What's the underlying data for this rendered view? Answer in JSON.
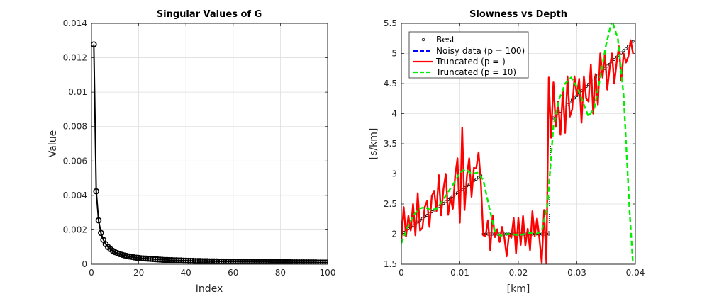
{
  "chart_data": [
    {
      "type": "line",
      "title": "Singular Values of G",
      "xlabel": "Index",
      "ylabel": "Value",
      "xlim": [
        0,
        100
      ],
      "ylim": [
        0,
        0.014
      ],
      "xticks": [
        0,
        20,
        40,
        60,
        80,
        100
      ],
      "yticks": [
        0,
        0.002,
        0.004,
        0.006,
        0.008,
        0.01,
        0.012,
        0.014
      ],
      "xtick_labels": [
        "0",
        "20",
        "40",
        "60",
        "80",
        "100"
      ],
      "ytick_labels": [
        "0",
        "0.002",
        "0.004",
        "0.006",
        "0.008",
        "0.01",
        "0.012",
        "0.014"
      ],
      "grid": true,
      "series": [
        {
          "color": "#000000",
          "marker": "circle",
          "x": [
            1,
            2,
            3,
            4,
            5,
            6,
            7,
            8,
            9,
            10,
            11,
            12,
            13,
            14,
            15,
            16,
            17,
            18,
            19,
            20,
            21,
            22,
            23,
            24,
            25,
            26,
            27,
            28,
            29,
            30,
            31,
            32,
            33,
            34,
            35,
            36,
            37,
            38,
            39,
            40,
            41,
            42,
            43,
            44,
            45,
            46,
            47,
            48,
            49,
            50,
            51,
            52,
            53,
            54,
            55,
            56,
            57,
            58,
            59,
            60,
            61,
            62,
            63,
            64,
            65,
            66,
            67,
            68,
            69,
            70,
            71,
            72,
            73,
            74,
            75,
            76,
            77,
            78,
            79,
            80,
            81,
            82,
            83,
            84,
            85,
            86,
            87,
            88,
            89,
            90,
            91,
            92,
            93,
            94,
            95,
            96,
            97,
            98,
            99,
            100
          ],
          "y": [
            0.01278,
            0.00424,
            0.00255,
            0.00182,
            0.00142,
            0.00117,
            0.001,
            0.00088,
            0.00078,
            0.0007,
            0.00064,
            0.00059,
            0.00055,
            0.00051,
            0.00048,
            0.00045,
            0.00043,
            0.0004,
            0.00038,
            0.00037,
            0.00035,
            0.00034,
            0.00033,
            0.00032,
            0.00031,
            0.0003,
            0.00029,
            0.00028,
            0.00027,
            0.00026,
            0.00025,
            0.00025,
            0.00024,
            0.00024,
            0.00023,
            0.00023,
            0.00022,
            0.00022,
            0.00021,
            0.00021,
            0.0002,
            0.0002,
            0.0002,
            0.00019,
            0.00019,
            0.00019,
            0.00018,
            0.00018,
            0.00018,
            0.00017,
            0.00017,
            0.00017,
            0.00017,
            0.00016,
            0.00016,
            0.00016,
            0.00016,
            0.00015,
            0.00015,
            0.00015,
            0.00015,
            0.00015,
            0.00014,
            0.00014,
            0.00014,
            0.00014,
            0.00014,
            0.00014,
            0.00013,
            0.00013,
            0.00013,
            0.00013,
            0.00013,
            0.00013,
            0.00013,
            0.00012,
            0.00012,
            0.00012,
            0.00012,
            0.00012,
            0.00012,
            0.00012,
            0.00012,
            0.00012,
            0.00011,
            0.00011,
            0.00011,
            0.00011,
            0.00011,
            0.00011,
            0.00011,
            0.00011,
            0.00011,
            0.00011,
            0.00011,
            0.0001,
            0.0001,
            0.0001,
            0.0001,
            0.0001
          ]
        }
      ]
    },
    {
      "type": "line",
      "title": "Slowness vs Depth",
      "xlabel": "[km]",
      "ylabel": "[s/km]",
      "xlim": [
        0,
        0.04
      ],
      "ylim": [
        1.5,
        5.5
      ],
      "xticks": [
        0,
        0.01,
        0.02,
        0.03,
        0.04
      ],
      "yticks": [
        1.5,
        2,
        2.5,
        3,
        3.5,
        4,
        4.5,
        5,
        5.5
      ],
      "xtick_labels": [
        "0",
        "0.01",
        "0.02",
        "0.03",
        "0.04"
      ],
      "ytick_labels": [
        "1.5",
        "2",
        "2.5",
        "3",
        "3.5",
        "4",
        "4.5",
        "5",
        "5.5"
      ],
      "grid": true,
      "legend_position": "top-left",
      "series": [
        {
          "name": "Best",
          "color": "#000000",
          "style": "dotted-marker",
          "x": [
            0,
            0.0004,
            0.0008,
            0.0012,
            0.0016,
            0.002,
            0.0024,
            0.0028,
            0.0032,
            0.0036,
            0.004,
            0.0044,
            0.0048,
            0.0052,
            0.0056,
            0.006,
            0.0064,
            0.0068,
            0.0072,
            0.0076,
            0.008,
            0.0084,
            0.0088,
            0.0092,
            0.0096,
            0.01,
            0.0104,
            0.0108,
            0.0112,
            0.0116,
            0.012,
            0.0124,
            0.0128,
            0.0132,
            0.0136,
            0.014,
            0.0144,
            0.0148,
            0.0152,
            0.0156,
            0.016,
            0.0164,
            0.0168,
            0.0172,
            0.0176,
            0.018,
            0.0184,
            0.0188,
            0.0192,
            0.0196,
            0.02,
            0.0204,
            0.0208,
            0.0212,
            0.0216,
            0.022,
            0.0224,
            0.0228,
            0.0232,
            0.0236,
            0.024,
            0.0244,
            0.0248,
            0.0252,
            0.0256,
            0.026,
            0.0264,
            0.0268,
            0.0272,
            0.0276,
            0.028,
            0.0284,
            0.0288,
            0.0292,
            0.0296,
            0.03,
            0.0304,
            0.0308,
            0.0312,
            0.0316,
            0.032,
            0.0324,
            0.0328,
            0.0332,
            0.0336,
            0.034,
            0.0344,
            0.0348,
            0.0352,
            0.0356,
            0.036,
            0.0364,
            0.0368,
            0.0372,
            0.0376,
            0.038,
            0.0384,
            0.0388,
            0.0392,
            0.0396
          ],
          "y": [
            2.0,
            2.03,
            2.06,
            2.09,
            2.11,
            2.14,
            2.17,
            2.2,
            2.23,
            2.26,
            2.29,
            2.31,
            2.34,
            2.37,
            2.4,
            2.43,
            2.46,
            2.49,
            2.51,
            2.54,
            2.57,
            2.6,
            2.63,
            2.66,
            2.69,
            2.71,
            2.74,
            2.77,
            2.8,
            2.83,
            2.86,
            2.89,
            2.91,
            2.94,
            2.97,
            2.0,
            2.0,
            2.0,
            2.0,
            2.0,
            2.0,
            2.0,
            2.0,
            2.0,
            2.0,
            2.0,
            2.0,
            2.0,
            2.0,
            2.0,
            2.0,
            2.0,
            2.0,
            2.0,
            2.0,
            2.0,
            2.0,
            2.0,
            2.0,
            2.0,
            2.0,
            2.0,
            2.0,
            2.0,
            3.89,
            3.93,
            3.97,
            4.0,
            4.04,
            4.08,
            4.11,
            4.15,
            4.19,
            4.23,
            4.26,
            4.3,
            4.34,
            4.38,
            4.41,
            4.45,
            4.49,
            4.53,
            4.56,
            4.6,
            4.64,
            4.67,
            4.71,
            4.75,
            4.79,
            4.82,
            4.86,
            4.9,
            4.94,
            4.97,
            5.01,
            5.05,
            5.08,
            5.12,
            5.16,
            5.2
          ]
        },
        {
          "name": "Noisy data (p = 100)",
          "color": "#0000ff",
          "style": "dashed",
          "x": [],
          "y": []
        },
        {
          "name": "Truncated (p = )",
          "color": "#ff0000",
          "style": "solid",
          "x": [
            0,
            0.0004,
            0.0008,
            0.0012,
            0.0016,
            0.002,
            0.0024,
            0.0028,
            0.0032,
            0.0036,
            0.004,
            0.0044,
            0.0048,
            0.0052,
            0.0056,
            0.006,
            0.0064,
            0.0068,
            0.0072,
            0.0076,
            0.008,
            0.0084,
            0.0088,
            0.0092,
            0.0096,
            0.01,
            0.0104,
            0.0108,
            0.0112,
            0.0116,
            0.012,
            0.0124,
            0.0128,
            0.0132,
            0.0136,
            0.014,
            0.0144,
            0.0148,
            0.0152,
            0.0156,
            0.016,
            0.0164,
            0.0168,
            0.0172,
            0.0176,
            0.018,
            0.0184,
            0.0188,
            0.0192,
            0.0196,
            0.02,
            0.0204,
            0.0208,
            0.0212,
            0.0216,
            0.022,
            0.0224,
            0.0228,
            0.0232,
            0.0236,
            0.024,
            0.0244,
            0.0248,
            0.0252,
            0.0256,
            0.026,
            0.0264,
            0.0268,
            0.0272,
            0.0276,
            0.028,
            0.0284,
            0.0288,
            0.0292,
            0.0296,
            0.03,
            0.0304,
            0.0308,
            0.0312,
            0.0316,
            0.032,
            0.0324,
            0.0328,
            0.0332,
            0.0336,
            0.034,
            0.0344,
            0.0348,
            0.0352,
            0.0356,
            0.036,
            0.0364,
            0.0368,
            0.0372,
            0.0376,
            0.038,
            0.0384,
            0.0388,
            0.0392,
            0.0396
          ],
          "y": [
            1.92,
            2.45,
            1.96,
            2.3,
            2.06,
            2.5,
            1.98,
            2.68,
            2.06,
            2.1,
            2.45,
            2.55,
            2.12,
            2.63,
            2.72,
            2.38,
            2.98,
            2.31,
            2.75,
            3.0,
            2.32,
            2.6,
            2.42,
            2.97,
            3.26,
            2.19,
            3.77,
            2.4,
            2.96,
            3.26,
            2.62,
            3.1,
            3.09,
            3.36,
            2.85,
            1.98,
            1.97,
            2.23,
            1.73,
            2.31,
            1.95,
            2.08,
            1.87,
            2.12,
            1.95,
            1.63,
            2.0,
            1.94,
            2.27,
            1.68,
            2.27,
            1.82,
            2.3,
            1.81,
            2.09,
            1.73,
            2.38,
            1.96,
            2.26,
            1.93,
            1.52,
            2.4,
            1.5,
            4.6,
            3.6,
            4.52,
            3.78,
            4.2,
            3.65,
            4.4,
            3.68,
            4.62,
            3.95,
            4.07,
            4.62,
            4.3,
            4.58,
            3.85,
            4.62,
            4.25,
            4.2,
            4.82,
            4.0,
            4.66,
            4.15,
            5.0,
            4.6,
            5.0,
            4.4,
            4.75,
            5.0,
            4.5,
            4.85,
            5.12,
            4.55,
            5.0,
            4.85,
            4.95,
            5.22,
            5.0
          ]
        },
        {
          "name": "Truncated (p = 10)",
          "color": "#00ee00",
          "style": "dashed",
          "x": [
            0,
            0.001,
            0.002,
            0.003,
            0.004,
            0.005,
            0.006,
            0.007,
            0.008,
            0.009,
            0.01,
            0.011,
            0.012,
            0.013,
            0.014,
            0.015,
            0.016,
            0.017,
            0.018,
            0.019,
            0.02,
            0.021,
            0.022,
            0.023,
            0.024,
            0.025,
            0.026,
            0.027,
            0.028,
            0.029,
            0.03,
            0.031,
            0.032,
            0.033,
            0.034,
            0.035,
            0.036,
            0.037,
            0.038,
            0.039,
            0.0396
          ],
          "y": [
            1.85,
            2.1,
            2.3,
            2.42,
            2.45,
            2.4,
            2.42,
            2.55,
            2.7,
            2.85,
            3.02,
            3.08,
            3.0,
            3.02,
            2.9,
            2.45,
            2.05,
            1.97,
            2.0,
            2.0,
            1.98,
            2.0,
            2.02,
            2.0,
            2.05,
            2.5,
            3.8,
            4.25,
            4.5,
            4.6,
            4.45,
            4.2,
            3.95,
            4.1,
            4.6,
            5.15,
            5.55,
            5.25,
            4.3,
            2.4,
            1.5
          ]
        }
      ]
    }
  ]
}
